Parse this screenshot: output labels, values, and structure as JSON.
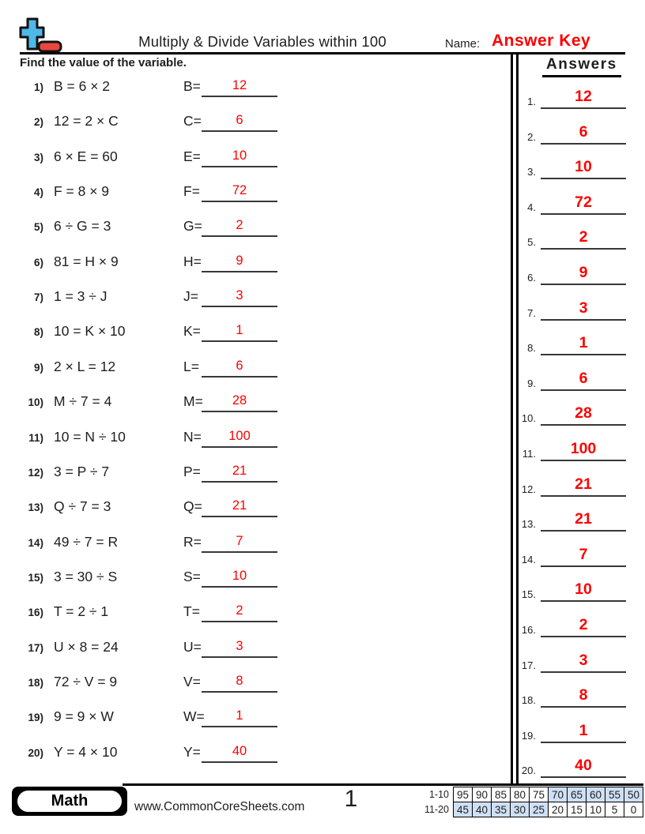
{
  "header": {
    "title": "Multiply & Divide Variables within 100",
    "name_label": "Name:",
    "name_value": "Answer Key",
    "instruction": "Find the value of the variable.",
    "answers_title": "Answers"
  },
  "problems": [
    {
      "num": "1)",
      "equation": "B = 6 × 2",
      "var_label": "B=",
      "answer": "12"
    },
    {
      "num": "2)",
      "equation": "12 = 2 × C",
      "var_label": "C=",
      "answer": "6"
    },
    {
      "num": "3)",
      "equation": "6 × E = 60",
      "var_label": "E=",
      "answer": "10"
    },
    {
      "num": "4)",
      "equation": "F = 8 × 9",
      "var_label": "F=",
      "answer": "72"
    },
    {
      "num": "5)",
      "equation": "6 ÷ G = 3",
      "var_label": "G=",
      "answer": "2"
    },
    {
      "num": "6)",
      "equation": "81 = H × 9",
      "var_label": "H=",
      "answer": "9"
    },
    {
      "num": "7)",
      "equation": "1 = 3 ÷ J",
      "var_label": "J=",
      "answer": "3"
    },
    {
      "num": "8)",
      "equation": "10 = K × 10",
      "var_label": "K=",
      "answer": "1"
    },
    {
      "num": "9)",
      "equation": "2 × L = 12",
      "var_label": "L=",
      "answer": "6"
    },
    {
      "num": "10)",
      "equation": "M ÷ 7 = 4",
      "var_label": "M=",
      "answer": "28"
    },
    {
      "num": "11)",
      "equation": "10 = N ÷ 10",
      "var_label": "N=",
      "answer": "100"
    },
    {
      "num": "12)",
      "equation": "3 = P ÷ 7",
      "var_label": "P=",
      "answer": "21"
    },
    {
      "num": "13)",
      "equation": "Q ÷ 7 = 3",
      "var_label": "Q=",
      "answer": "21"
    },
    {
      "num": "14)",
      "equation": "49 ÷ 7 = R",
      "var_label": "R=",
      "answer": "7"
    },
    {
      "num": "15)",
      "equation": "3 = 30 ÷ S",
      "var_label": "S=",
      "answer": "10"
    },
    {
      "num": "16)",
      "equation": "T = 2 ÷ 1",
      "var_label": "T=",
      "answer": "2"
    },
    {
      "num": "17)",
      "equation": "U × 8 = 24",
      "var_label": "U=",
      "answer": "3"
    },
    {
      "num": "18)",
      "equation": "72 ÷ V = 9",
      "var_label": "V=",
      "answer": "8"
    },
    {
      "num": "19)",
      "equation": "9 = 9 × W",
      "var_label": "W=",
      "answer": "1"
    },
    {
      "num": "20)",
      "equation": "Y = 4 × 10",
      "var_label": "Y=",
      "answer": "40"
    }
  ],
  "answer_column": [
    {
      "num": "1.",
      "value": "12"
    },
    {
      "num": "2.",
      "value": "6"
    },
    {
      "num": "3.",
      "value": "10"
    },
    {
      "num": "4.",
      "value": "72"
    },
    {
      "num": "5.",
      "value": "2"
    },
    {
      "num": "6.",
      "value": "9"
    },
    {
      "num": "7.",
      "value": "3"
    },
    {
      "num": "8.",
      "value": "1"
    },
    {
      "num": "9.",
      "value": "6"
    },
    {
      "num": "10.",
      "value": "28"
    },
    {
      "num": "11.",
      "value": "100"
    },
    {
      "num": "12.",
      "value": "21"
    },
    {
      "num": "13.",
      "value": "21"
    },
    {
      "num": "14.",
      "value": "7"
    },
    {
      "num": "15.",
      "value": "10"
    },
    {
      "num": "16.",
      "value": "2"
    },
    {
      "num": "17.",
      "value": "3"
    },
    {
      "num": "18.",
      "value": "8"
    },
    {
      "num": "19.",
      "value": "1"
    },
    {
      "num": "20.",
      "value": "40"
    }
  ],
  "footer": {
    "subject": "Math",
    "website": "www.CommonCoreSheets.com",
    "page": "1",
    "score_table": {
      "rows": [
        {
          "label": "1-10",
          "cells": [
            {
              "value": "95",
              "highlighted": false
            },
            {
              "value": "90",
              "highlighted": false
            },
            {
              "value": "85",
              "highlighted": false
            },
            {
              "value": "80",
              "highlighted": false
            },
            {
              "value": "75",
              "highlighted": false
            },
            {
              "value": "70",
              "highlighted": true
            },
            {
              "value": "65",
              "highlighted": true
            },
            {
              "value": "60",
              "highlighted": true
            },
            {
              "value": "55",
              "highlighted": true
            },
            {
              "value": "50",
              "highlighted": true
            }
          ]
        },
        {
          "label": "11-20",
          "cells": [
            {
              "value": "45",
              "highlighted": true
            },
            {
              "value": "40",
              "highlighted": true
            },
            {
              "value": "35",
              "highlighted": true
            },
            {
              "value": "30",
              "highlighted": true
            },
            {
              "value": "25",
              "highlighted": true
            },
            {
              "value": "20",
              "highlighted": false
            },
            {
              "value": "15",
              "highlighted": false
            },
            {
              "value": "10",
              "highlighted": false
            },
            {
              "value": "5",
              "highlighted": false
            },
            {
              "value": "0",
              "highlighted": false
            }
          ]
        }
      ]
    }
  },
  "colors": {
    "answer_red": "#fb0200",
    "logo_blue": "#4fb8e8",
    "logo_red": "#e8473f",
    "score_highlight": "#cfe0f6"
  }
}
